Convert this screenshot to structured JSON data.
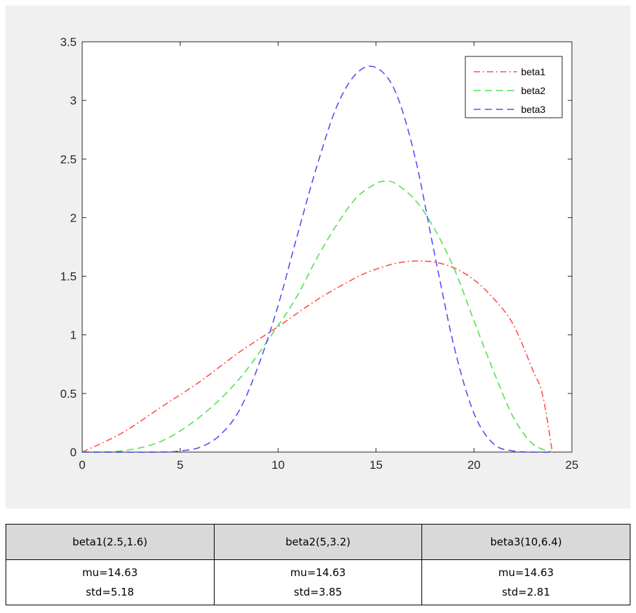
{
  "chart_data": {
    "type": "line",
    "xlim": [
      0,
      25
    ],
    "ylim": [
      0,
      3.5
    ],
    "xticks": [
      0,
      5,
      10,
      15,
      20,
      25
    ],
    "xtick_labels": [
      "0",
      "5",
      "10",
      "15",
      "20",
      "25"
    ],
    "yticks": [
      0,
      0.5,
      1,
      1.5,
      2,
      2.5,
      3,
      3.5
    ],
    "ytick_labels": [
      "0",
      "0.5",
      "1",
      "1.5",
      "2",
      "2.5",
      "3",
      "3.5"
    ],
    "grid": false,
    "legend_position": "top-right",
    "series": [
      {
        "name": "beta1",
        "color": "#ff3333",
        "style": "dash-dot",
        "x": [
          0,
          2,
          4,
          6,
          8,
          10,
          12,
          14,
          15,
          16,
          17,
          18,
          19,
          20,
          21,
          22,
          23,
          23.5,
          24
        ],
        "y": [
          0,
          0.16,
          0.38,
          0.6,
          0.85,
          1.07,
          1.3,
          1.49,
          1.56,
          1.61,
          1.63,
          1.62,
          1.57,
          1.47,
          1.31,
          1.09,
          0.7,
          0.49,
          0
        ]
      },
      {
        "name": "beta2",
        "color": "#33dd33",
        "style": "dashed",
        "x": [
          0,
          2,
          4,
          6,
          8,
          10,
          11,
          12,
          13,
          14,
          15,
          15.5,
          16,
          17,
          18,
          19,
          20,
          21,
          22,
          23,
          24
        ],
        "y": [
          0,
          0.01,
          0.09,
          0.3,
          0.62,
          1.08,
          1.34,
          1.66,
          1.94,
          2.17,
          2.29,
          2.31,
          2.29,
          2.15,
          1.9,
          1.56,
          1.12,
          0.69,
          0.3,
          0.07,
          0
        ]
      },
      {
        "name": "beta3",
        "color": "#3333ee",
        "style": "dashed",
        "x": [
          0,
          4,
          5,
          6,
          7,
          8,
          9,
          10,
          11,
          12,
          13,
          14,
          15,
          16,
          17,
          18,
          19,
          20,
          21,
          22,
          23,
          24
        ],
        "y": [
          0,
          0,
          0.01,
          0.04,
          0.14,
          0.35,
          0.74,
          1.25,
          1.86,
          2.45,
          2.95,
          3.23,
          3.28,
          3.07,
          2.51,
          1.68,
          0.89,
          0.33,
          0.07,
          0.01,
          0,
          0
        ]
      }
    ]
  },
  "table": {
    "headers": [
      "beta1(2.5,1.6)",
      "beta2(5,3.2)",
      "beta3(10,6.4)"
    ],
    "mu": [
      "mu=14.63",
      "mu=14.63",
      "mu=14.63"
    ],
    "std": [
      "std=5.18",
      "std=3.85",
      "std=2.81"
    ]
  }
}
